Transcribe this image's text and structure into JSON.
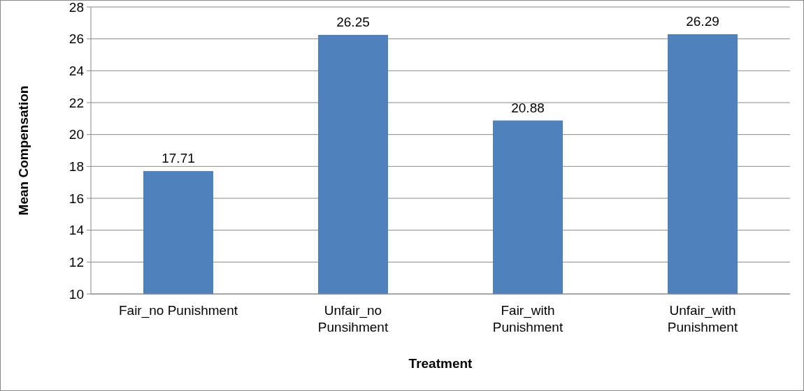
{
  "chart_data": {
    "type": "bar",
    "xlabel": "Treatment",
    "ylabel": "Mean Compensation",
    "categories": [
      "Fair_no Punishment",
      "Unfair_no Punsihment",
      "Fair_with Punishment",
      "Unfair_with Punishment"
    ],
    "values": [
      17.71,
      26.25,
      20.88,
      26.29
    ],
    "color": "#4f81bd",
    "ylim": [
      10,
      28
    ],
    "yticks": [
      10,
      12,
      14,
      16,
      18,
      20,
      22,
      24,
      26,
      28
    ],
    "grid": "y",
    "data_labels": true
  }
}
